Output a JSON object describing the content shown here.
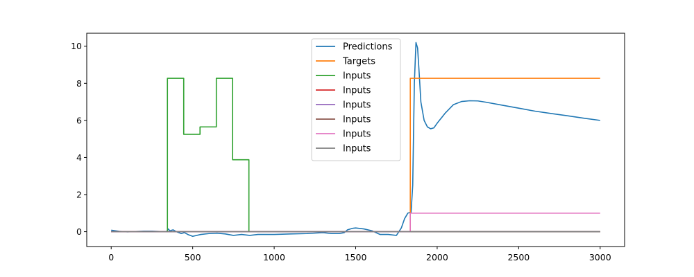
{
  "chart_data": {
    "type": "line",
    "xlim": [
      -150,
      3150
    ],
    "ylim": [
      -0.8,
      10.7
    ],
    "x_ticks": [
      0,
      500,
      1000,
      1500,
      2000,
      2500,
      3000
    ],
    "y_ticks": [
      0,
      2,
      4,
      6,
      8,
      10
    ],
    "legend_placement": "top-center",
    "grid": false,
    "series": [
      {
        "name": "Predictions",
        "color": "#1f77b4",
        "x": [
          0,
          50,
          100,
          150,
          200,
          250,
          300,
          340,
          350,
          360,
          380,
          400,
          430,
          450,
          470,
          500,
          550,
          600,
          650,
          700,
          750,
          800,
          850,
          900,
          950,
          1000,
          1100,
          1200,
          1300,
          1350,
          1400,
          1430,
          1450,
          1480,
          1500,
          1550,
          1600,
          1650,
          1700,
          1750,
          1780,
          1800,
          1820,
          1840,
          1850,
          1860,
          1870,
          1880,
          1890,
          1900,
          1920,
          1940,
          1960,
          1980,
          2000,
          2050,
          2100,
          2150,
          2200,
          2250,
          2300,
          2400,
          2500,
          2600,
          2700,
          2800,
          2900,
          3000
        ],
        "y": [
          0.08,
          0.02,
          -0.01,
          0.01,
          0.03,
          0.03,
          0.01,
          0.0,
          0.15,
          0.05,
          0.1,
          0.0,
          -0.1,
          -0.05,
          -0.15,
          -0.25,
          -0.15,
          -0.1,
          -0.08,
          -0.12,
          -0.2,
          -0.15,
          -0.2,
          -0.15,
          -0.15,
          -0.15,
          -0.12,
          -0.1,
          -0.05,
          -0.1,
          -0.1,
          -0.05,
          0.1,
          0.18,
          0.2,
          0.15,
          0.05,
          -0.15,
          -0.15,
          -0.2,
          0.2,
          0.7,
          1.0,
          1.05,
          2.5,
          8.0,
          10.2,
          9.9,
          8.5,
          7.0,
          6.0,
          5.65,
          5.55,
          5.6,
          5.85,
          6.4,
          6.85,
          7.02,
          7.06,
          7.05,
          6.98,
          6.82,
          6.66,
          6.5,
          6.37,
          6.25,
          6.12,
          6.0
        ]
      },
      {
        "name": "Targets",
        "color": "#ff7f0e",
        "x": [
          0,
          1835,
          1835,
          3000
        ],
        "y": [
          0,
          0,
          8.27,
          8.27
        ]
      },
      {
        "name": "Inputs",
        "color": "#2ca02c",
        "x": [
          0,
          345,
          345,
          445,
          445,
          545,
          545,
          645,
          645,
          745,
          745,
          845,
          845,
          3000
        ],
        "y": [
          0,
          0,
          8.27,
          8.27,
          5.25,
          5.25,
          5.65,
          5.65,
          8.27,
          8.27,
          3.88,
          3.88,
          0,
          0
        ]
      },
      {
        "name": "Inputs",
        "color": "#d62728",
        "x": [
          0,
          3000
        ],
        "y": [
          0,
          0
        ]
      },
      {
        "name": "Inputs",
        "color": "#9467bd",
        "x": [
          0,
          3000
        ],
        "y": [
          0,
          0
        ]
      },
      {
        "name": "Inputs",
        "color": "#8c564b",
        "x": [
          0,
          3000
        ],
        "y": [
          0,
          0
        ]
      },
      {
        "name": "Inputs",
        "color": "#e377c2",
        "x": [
          0,
          1835,
          1835,
          3000
        ],
        "y": [
          0,
          0,
          1.0,
          1.0
        ]
      },
      {
        "name": "Inputs",
        "color": "#7f7f7f",
        "x": [
          0,
          3000
        ],
        "y": [
          0,
          0
        ]
      }
    ]
  }
}
